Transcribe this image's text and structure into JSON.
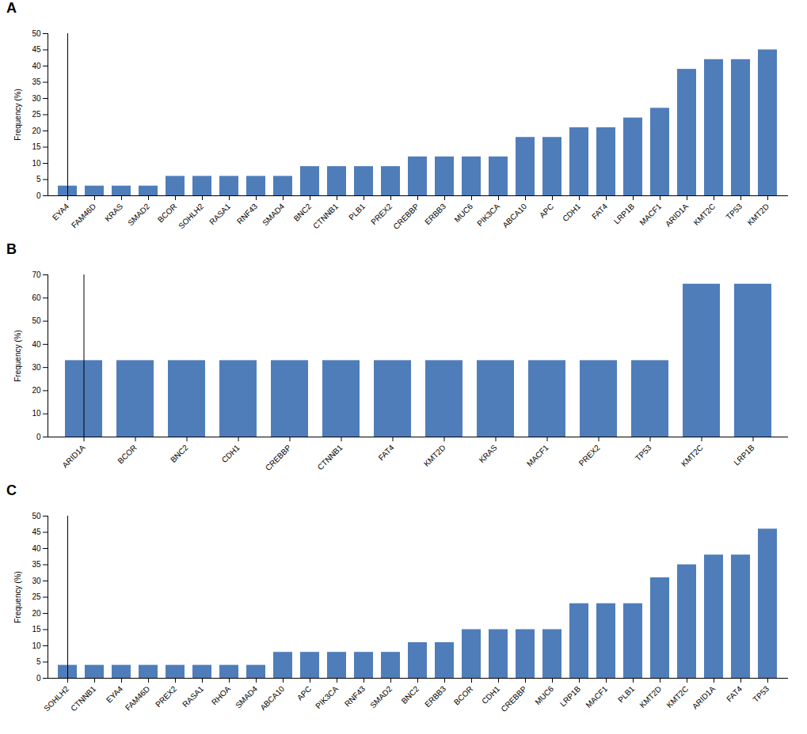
{
  "chart_data": [
    {
      "type": "bar",
      "title": "A",
      "categories": [
        "EYA4",
        "FAM46D",
        "KRAS",
        "SMAD2",
        "BCOR",
        "SOHLH2",
        "RASA1",
        "RNF43",
        "SMAD4",
        "BNC2",
        "CTNNB1",
        "PLB1",
        "PREX2",
        "CREBBP",
        "ERBB3",
        "MUC6",
        "PIK3CA",
        "ABCA10",
        "APC",
        "CDH1",
        "FAT4",
        "LRP1B",
        "MACF1",
        "ARID1A",
        "KMT2C",
        "TP53",
        "KMT2D"
      ],
      "values": [
        3,
        3,
        3,
        3,
        6,
        6,
        6,
        6,
        6,
        9,
        9,
        9,
        9,
        12,
        12,
        12,
        12,
        18,
        18,
        21,
        21,
        24,
        27,
        39,
        42,
        42,
        45
      ],
      "color": "#4f7dba",
      "ylim": [
        0,
        50
      ],
      "yticks": [
        0,
        5,
        10,
        15,
        20,
        25,
        30,
        35,
        40,
        45,
        50
      ],
      "ylabel": "Frequency (%)",
      "grid": false
    },
    {
      "type": "bar",
      "title": "B",
      "categories": [
        "ARID1A",
        "BCOR",
        "BNC2",
        "CDH1",
        "CREBBP",
        "CTNNB1",
        "FAT4",
        "KMT2D",
        "KRAS",
        "MACF1",
        "PREX2",
        "TP53",
        "KMT2C",
        "LRP1B"
      ],
      "values": [
        33,
        33,
        33,
        33,
        33,
        33,
        33,
        33,
        33,
        33,
        33,
        33,
        66,
        66
      ],
      "color": "#4f7dba",
      "ylim": [
        0,
        70
      ],
      "yticks": [
        0,
        10,
        20,
        30,
        40,
        50,
        60,
        70
      ],
      "ylabel": "Frequency (%)",
      "grid": false
    },
    {
      "type": "bar",
      "title": "C",
      "categories": [
        "SOHLH2",
        "CTNNB1",
        "EYA4",
        "FAM46D",
        "PREX2",
        "RASA1",
        "RHOA",
        "SMAD4",
        "ABCA10",
        "APC",
        "PIK3CA",
        "RNF43",
        "SMAD2",
        "BNC2",
        "ERBB3",
        "BCOR",
        "CDH1",
        "CREBBP",
        "MUC6",
        "LRP1B",
        "MACF1",
        "PLB1",
        "KMT2D",
        "KMT2C",
        "ARID1A",
        "FAT4",
        "TP53"
      ],
      "values": [
        4,
        4,
        4,
        4,
        4,
        4,
        4,
        4,
        8,
        8,
        8,
        8,
        8,
        11,
        11,
        15,
        15,
        15,
        15,
        23,
        23,
        23,
        31,
        35,
        38,
        38,
        46
      ],
      "color": "#4f7dba",
      "ylim": [
        0,
        50
      ],
      "yticks": [
        0,
        5,
        10,
        15,
        20,
        25,
        30,
        35,
        40,
        45,
        50
      ],
      "ylabel": "Frequency (%)",
      "grid": false
    }
  ]
}
